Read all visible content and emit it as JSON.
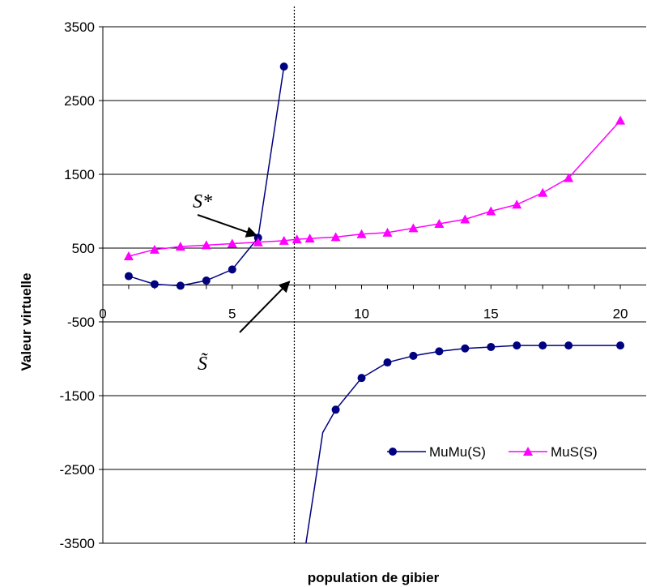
{
  "chart_data": {
    "type": "line",
    "title": "",
    "xlabel": "population de gibier",
    "ylabel": "Valeur virtuelle",
    "xlim": [
      0,
      21
    ],
    "ylim": [
      -3500,
      3500
    ],
    "x_ticks": [
      "0",
      "5",
      "10",
      "15",
      "20"
    ],
    "y_ticks": [
      "3500",
      "2500",
      "1500",
      "500",
      "-500",
      "-1500",
      "-2500",
      "-3500"
    ],
    "grid": "horizontal",
    "legend_position": "bottom-right",
    "vertical_marker_x": 7.4,
    "annotations": [
      {
        "text": "S*",
        "points_to": [
          6.0,
          650
        ]
      },
      {
        "text": "S̃",
        "points_to": [
          7.4,
          90
        ]
      }
    ],
    "series": [
      {
        "name": "MuMu(S)",
        "color": "#000080",
        "marker": "circle",
        "x": [
          1,
          2,
          3,
          4,
          5,
          6,
          7,
          9,
          10,
          11,
          12,
          13,
          14,
          15,
          16,
          17,
          18,
          20
        ],
        "y": [
          120,
          10,
          -10,
          60,
          210,
          640,
          2960,
          -1690,
          -1260,
          -1050,
          -960,
          -900,
          -860,
          -840,
          -820,
          -820,
          -820,
          -820
        ]
      },
      {
        "name": "MuS(S)",
        "color": "#ff00ff",
        "marker": "triangle",
        "x": [
          1,
          2,
          3,
          4,
          5,
          6,
          7,
          7.5,
          8,
          9,
          10,
          11,
          12,
          13,
          14,
          15,
          16,
          17,
          18,
          20
        ],
        "y": [
          390,
          480,
          520,
          540,
          560,
          580,
          600,
          620,
          630,
          650,
          690,
          710,
          770,
          830,
          890,
          1000,
          1090,
          1250,
          1450,
          2230
        ]
      }
    ]
  }
}
